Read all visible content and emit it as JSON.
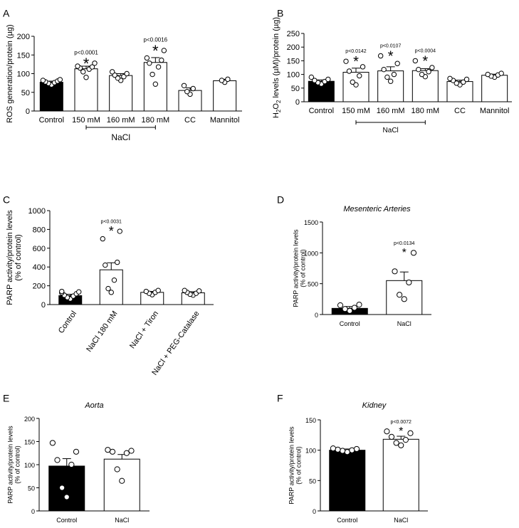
{
  "chart_data": [
    {
      "type": "bar",
      "panel": "A",
      "title": "",
      "ylabel": "ROS generation/protein (µg)",
      "ylim": [
        0,
        200
      ],
      "yticks": [
        0,
        50,
        100,
        150,
        200
      ],
      "categories": [
        "Control",
        "150 mM",
        "160 mM",
        "180 mM",
        "CC",
        "Mannitol"
      ],
      "values": [
        77,
        113,
        95,
        130,
        55,
        81
      ],
      "sem": [
        3,
        7,
        5,
        13,
        7,
        4
      ],
      "fills": [
        "#000000",
        "#ffffff",
        "#ffffff",
        "#ffffff",
        "#ffffff",
        "#ffffff"
      ],
      "points": [
        [
          70,
          74,
          76,
          78,
          80,
          82,
          84
        ],
        [
          90,
          105,
          112,
          115,
          118,
          120,
          128
        ],
        [
          82,
          88,
          92,
          96,
          100,
          105
        ],
        [
          72,
          98,
          118,
          128,
          136,
          142,
          162
        ],
        [
          45,
          52,
          60,
          68
        ],
        [
          77,
          82,
          85
        ]
      ],
      "annotations": [
        {
          "category": "150 mM",
          "pvalue": "p<0.0001",
          "star": "*"
        },
        {
          "category": "180 mM",
          "pvalue": "p<0.0016",
          "star": "*"
        }
      ],
      "group_label": {
        "text": "NaCl",
        "from": "150 mM",
        "to": "180 mM"
      }
    },
    {
      "type": "bar",
      "panel": "B",
      "title": "",
      "ylabel": "H2O2 levels (µM)/protein (µg)",
      "ylim": [
        0,
        250
      ],
      "yticks": [
        0,
        50,
        100,
        150,
        200,
        250
      ],
      "categories": [
        "Control",
        "150 mM",
        "160 mM",
        "180 mM",
        "CC",
        "Mannitol"
      ],
      "values": [
        75,
        108,
        113,
        114,
        74,
        97
      ],
      "sem": [
        5,
        15,
        15,
        7,
        5,
        4
      ],
      "fills": [
        "#000000",
        "#ffffff",
        "#ffffff",
        "#ffffff",
        "#ffffff",
        "#ffffff"
      ],
      "points": [
        [
          65,
          70,
          74,
          78,
          82,
          90
        ],
        [
          62,
          72,
          95,
          112,
          128,
          148
        ],
        [
          75,
          90,
          100,
          118,
          140,
          168
        ],
        [
          92,
          100,
          110,
          118,
          125,
          150
        ],
        [
          62,
          68,
          72,
          78,
          82,
          85
        ],
        [
          90,
          94,
          98,
          100,
          104
        ]
      ],
      "annotations": [
        {
          "category": "150 mM",
          "pvalue": "p<0.0142",
          "star": "*"
        },
        {
          "category": "160 mM",
          "pvalue": "p<0.0107",
          "star": "*"
        },
        {
          "category": "180 mM",
          "pvalue": "p<0.0004",
          "star": "*"
        }
      ],
      "group_label": {
        "text": "NaCl",
        "from": "150 mM",
        "to": "180 mM"
      }
    },
    {
      "type": "bar",
      "panel": "C",
      "title": "",
      "ylabel": "PARP activity/protein levels (% of control)",
      "ylim": [
        0,
        1000
      ],
      "yticks": [
        0,
        200,
        400,
        600,
        800,
        1000
      ],
      "categories": [
        "Control",
        "NaCl 180 mM",
        "NaCl + Tiron",
        "NaCl + PEG-Catalase"
      ],
      "values": [
        95,
        370,
        130,
        125
      ],
      "sem": [
        15,
        75,
        10,
        12
      ],
      "fills": [
        "#000000",
        "#ffffff",
        "#ffffff",
        "#ffffff"
      ],
      "points": [
        [
          60,
          75,
          90,
          100,
          115,
          125,
          135,
          140
        ],
        [
          130,
          170,
          260,
          420,
          450,
          700,
          780
        ],
        [
          105,
          120,
          130,
          140,
          150
        ],
        [
          100,
          110,
          120,
          130,
          145,
          150
        ]
      ],
      "annotations": [
        {
          "category": "NaCl 180 mM",
          "pvalue": "p<0.0031",
          "star": "*"
        }
      ]
    },
    {
      "type": "bar",
      "panel": "D",
      "title": "Mesenteric Arteries",
      "ylabel": "PARP activity/protein levels (% of control)",
      "ylim": [
        0,
        1500
      ],
      "yticks": [
        0,
        500,
        1000,
        1500
      ],
      "categories": [
        "Control",
        "NaCl"
      ],
      "values": [
        100,
        550
      ],
      "sem": [
        30,
        140
      ],
      "fills": [
        "#000000",
        "#ffffff"
      ],
      "points": [
        [
          60,
          90,
          110,
          150,
          160
        ],
        [
          250,
          320,
          520,
          700,
          1000
        ]
      ],
      "annotations": [
        {
          "category": "NaCl",
          "pvalue": "p<0.0134",
          "star": "*"
        }
      ]
    },
    {
      "type": "bar",
      "panel": "E",
      "title": "Aorta",
      "ylabel": "PARP activity/protein levels (% of control)",
      "ylim": [
        0,
        200
      ],
      "yticks": [
        0,
        50,
        100,
        150,
        200
      ],
      "categories": [
        "Control",
        "NaCl"
      ],
      "values": [
        97,
        112
      ],
      "sem": [
        16,
        10
      ],
      "fills": [
        "#000000",
        "#ffffff"
      ],
      "points": [
        [
          30,
          50,
          100,
          110,
          128,
          147
        ],
        [
          65,
          90,
          125,
          128,
          130,
          132
        ]
      ],
      "annotations": []
    },
    {
      "type": "bar",
      "panel": "F",
      "title": "Kidney",
      "ylabel": "PARP activity/protein levels (% of control)",
      "ylim": [
        0,
        150
      ],
      "yticks": [
        0,
        50,
        100,
        150
      ],
      "categories": [
        "Control",
        "NaCl"
      ],
      "values": [
        100,
        118
      ],
      "sem": [
        2,
        5
      ],
      "fills": [
        "#000000",
        "#ffffff"
      ],
      "points": [
        [
          97,
          99,
          100,
          101,
          102,
          103
        ],
        [
          108,
          112,
          117,
          122,
          128,
          131
        ]
      ],
      "annotations": [
        {
          "category": "NaCl",
          "pvalue": "p<0.0072",
          "star": "*"
        }
      ]
    }
  ]
}
